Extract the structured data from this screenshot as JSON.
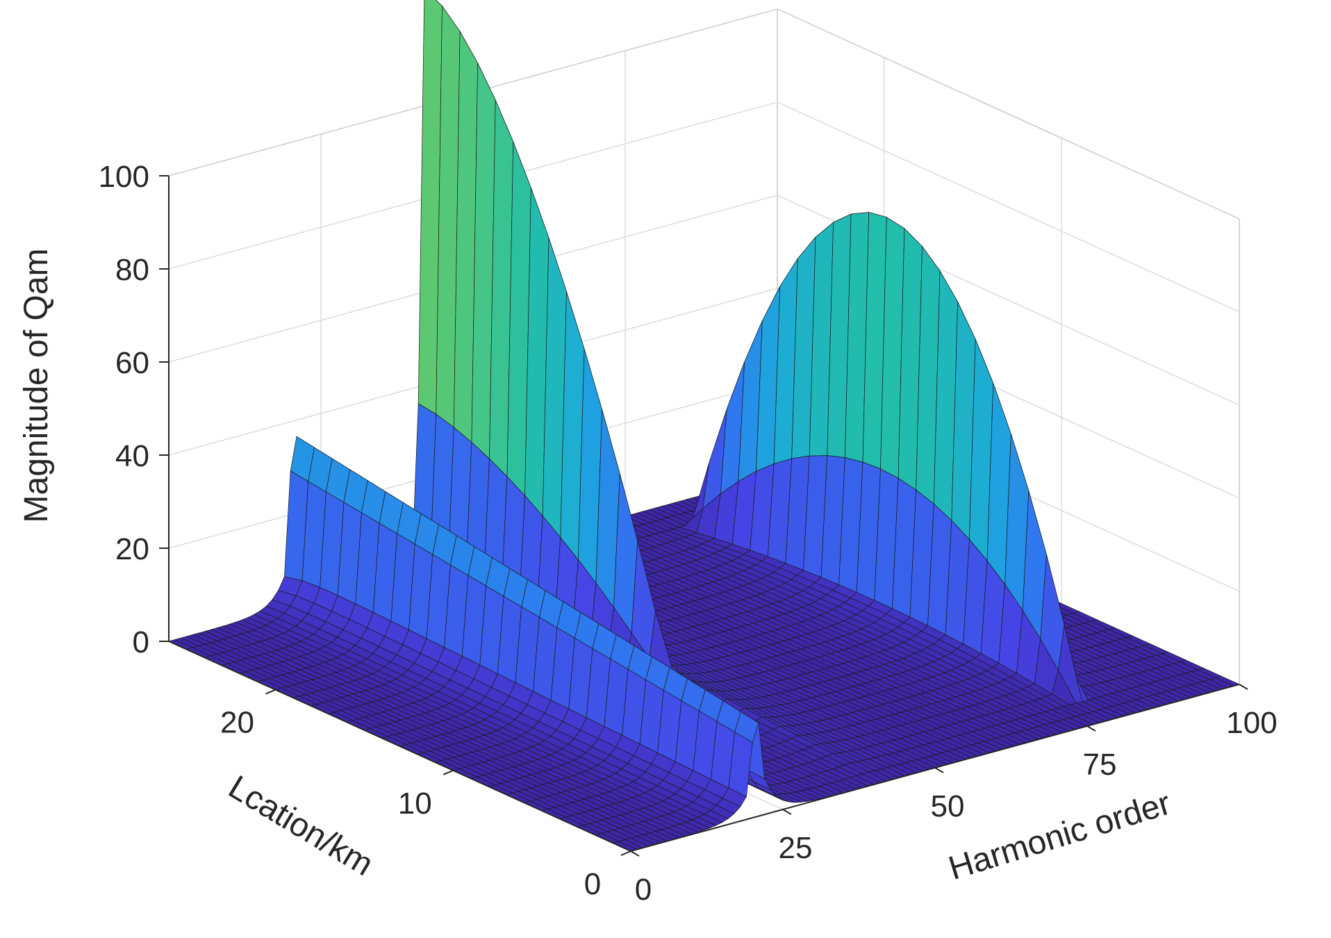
{
  "chart_data": {
    "type": "surface",
    "title": "",
    "xlabel": "Harmonic order",
    "ylabel": "Lcation/km",
    "zlabel": "Magnitude of Qam",
    "xlim": [
      0,
      100
    ],
    "ylim": [
      0,
      26
    ],
    "zlim": [
      0,
      100
    ],
    "xticks": [
      0,
      25,
      50,
      75,
      100
    ],
    "yticks": [
      0,
      10,
      20
    ],
    "zticks": [
      0,
      20,
      40,
      60,
      80,
      100
    ],
    "grid": true,
    "colormap": [
      "#3e26a8",
      "#4744e6",
      "#2f79f0",
      "#1ca9dc",
      "#23bfa8",
      "#5ac873",
      "#d7c82d",
      "#fcf31c"
    ],
    "ridges": [
      {
        "harmonic_order": 21,
        "peak_magnitude": 40,
        "location_at_peak_km": 25
      },
      {
        "harmonic_order": 42,
        "peak_magnitude": 125,
        "location_at_peak_km": 25
      },
      {
        "harmonic_order": 80,
        "peak_magnitude": 85,
        "location_at_peak_km": 13
      }
    ]
  }
}
